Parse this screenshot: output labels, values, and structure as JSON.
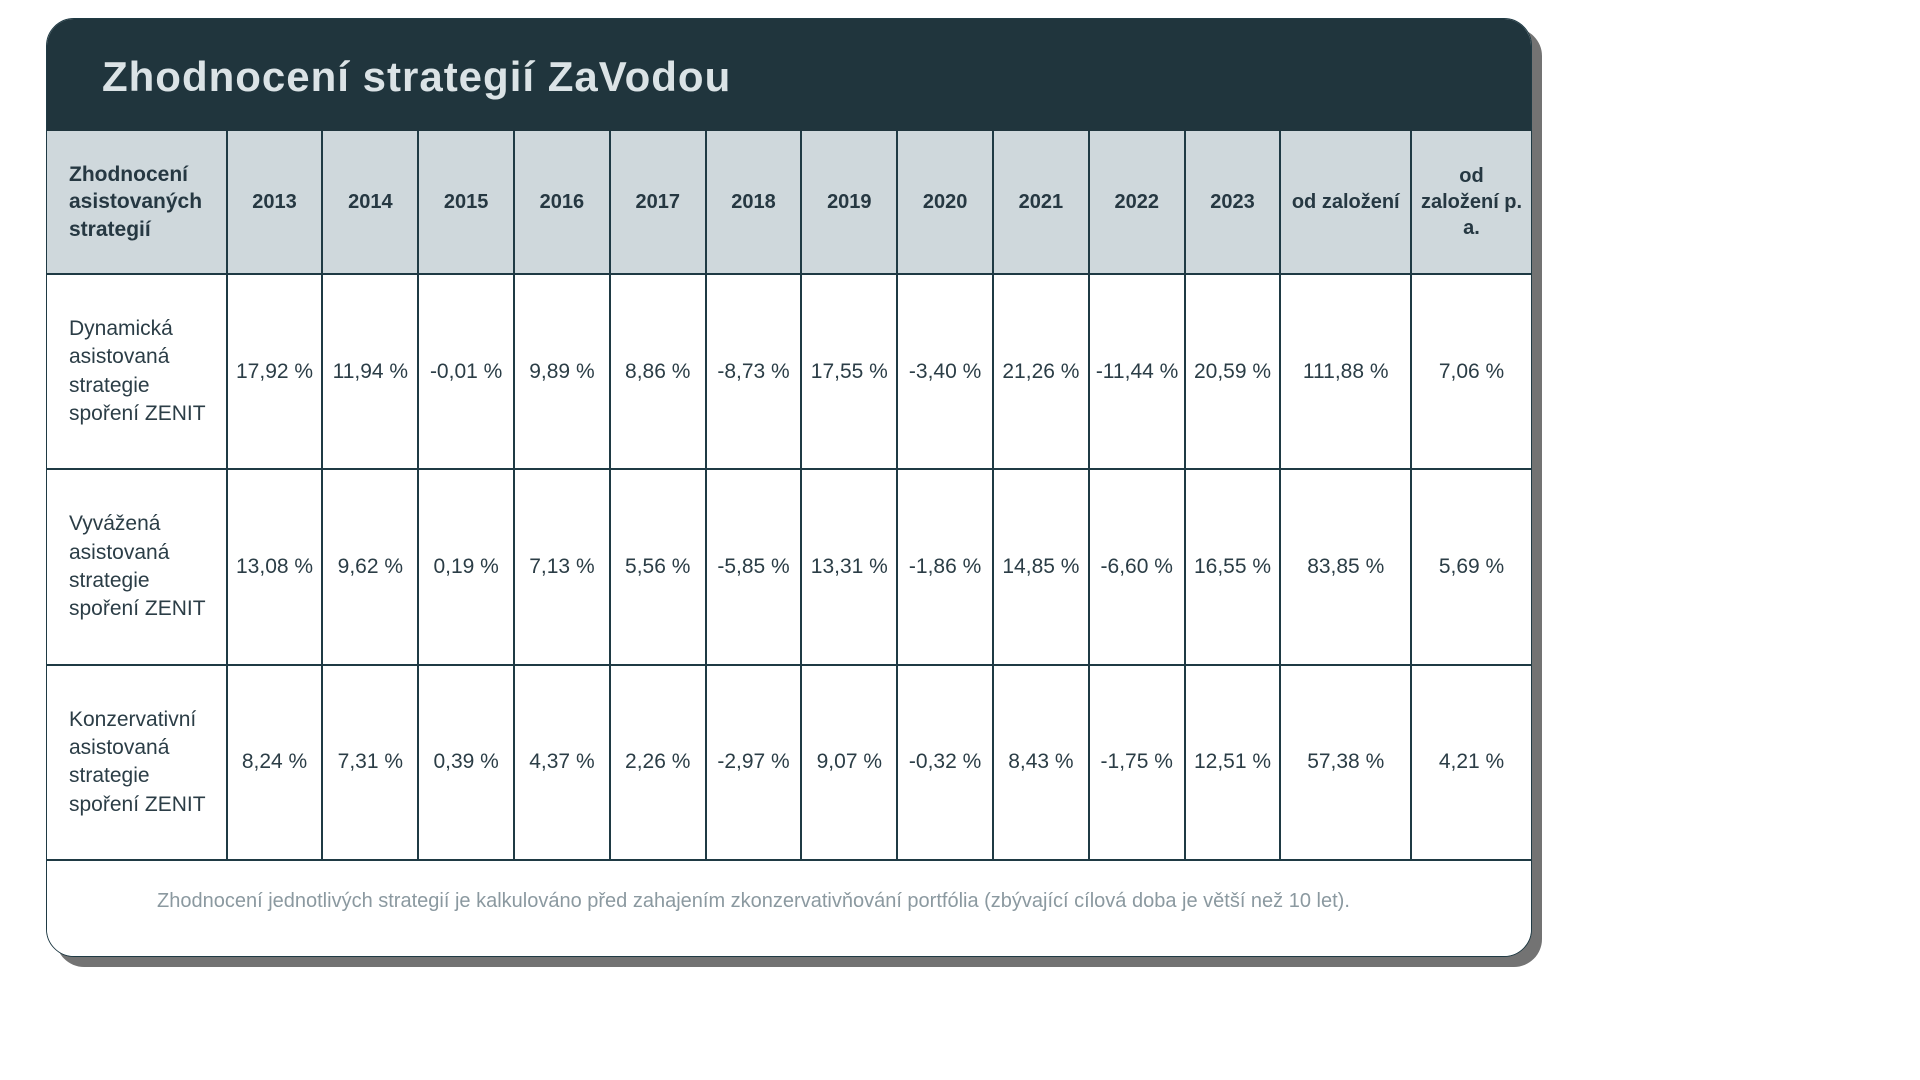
{
  "colors": {
    "header_bg": "#20353d",
    "header_text": "#dbe3e6",
    "thead_bg": "#cfd8dc",
    "border": "#1f3a44",
    "body_text": "#2b3d46",
    "footnote_text": "#8b99a0",
    "card_bg": "#ffffff",
    "shadow": "rgba(0,0,0,0.55)"
  },
  "title": "Zhodnocení strategií ZaVodou",
  "table": {
    "type": "table",
    "columns": [
      "Zhodnocení asistovaných strategií",
      "2013",
      "2014",
      "2015",
      "2016",
      "2017",
      "2018",
      "2019",
      "2020",
      "2021",
      "2022",
      "2023",
      "od založení",
      "od založení p. a."
    ],
    "rows": [
      {
        "label": "Dynamická asistovaná strategie spoření ZENIT",
        "values": [
          "17,92 %",
          "11,94 %",
          "-0,01 %",
          "9,89 %",
          "8,86 %",
          "-8,73 %",
          "17,55 %",
          "-3,40 %",
          "21,26 %",
          "-11,44 %",
          "20,59 %",
          "111,88 %",
          "7,06 %"
        ]
      },
      {
        "label": "Vyvážená asistovaná strategie spoření ZENIT",
        "values": [
          "13,08 %",
          "9,62 %",
          "0,19 %",
          "7,13 %",
          "5,56 %",
          "-5,85 %",
          "13,31 %",
          "-1,86 %",
          "14,85 %",
          "-6,60 %",
          "16,55 %",
          "83,85 %",
          "5,69 %"
        ]
      },
      {
        "label": "Konzervativní asistovaná strategie spoření ZENIT",
        "values": [
          "8,24 %",
          "7,31 %",
          "0,39 %",
          "4,37 %",
          "2,26 %",
          "-2,97 %",
          "9,07 %",
          "-0,32 %",
          "8,43 %",
          "-1,75 %",
          "12,51 %",
          "57,38 %",
          "4,21 %"
        ]
      }
    ]
  },
  "footnote": "Zhodnocení jednotlivých strategií je kalkulováno před zahajením zkonzervativňování portfólia (zbývající cílová doba je větší než 10 let)."
}
